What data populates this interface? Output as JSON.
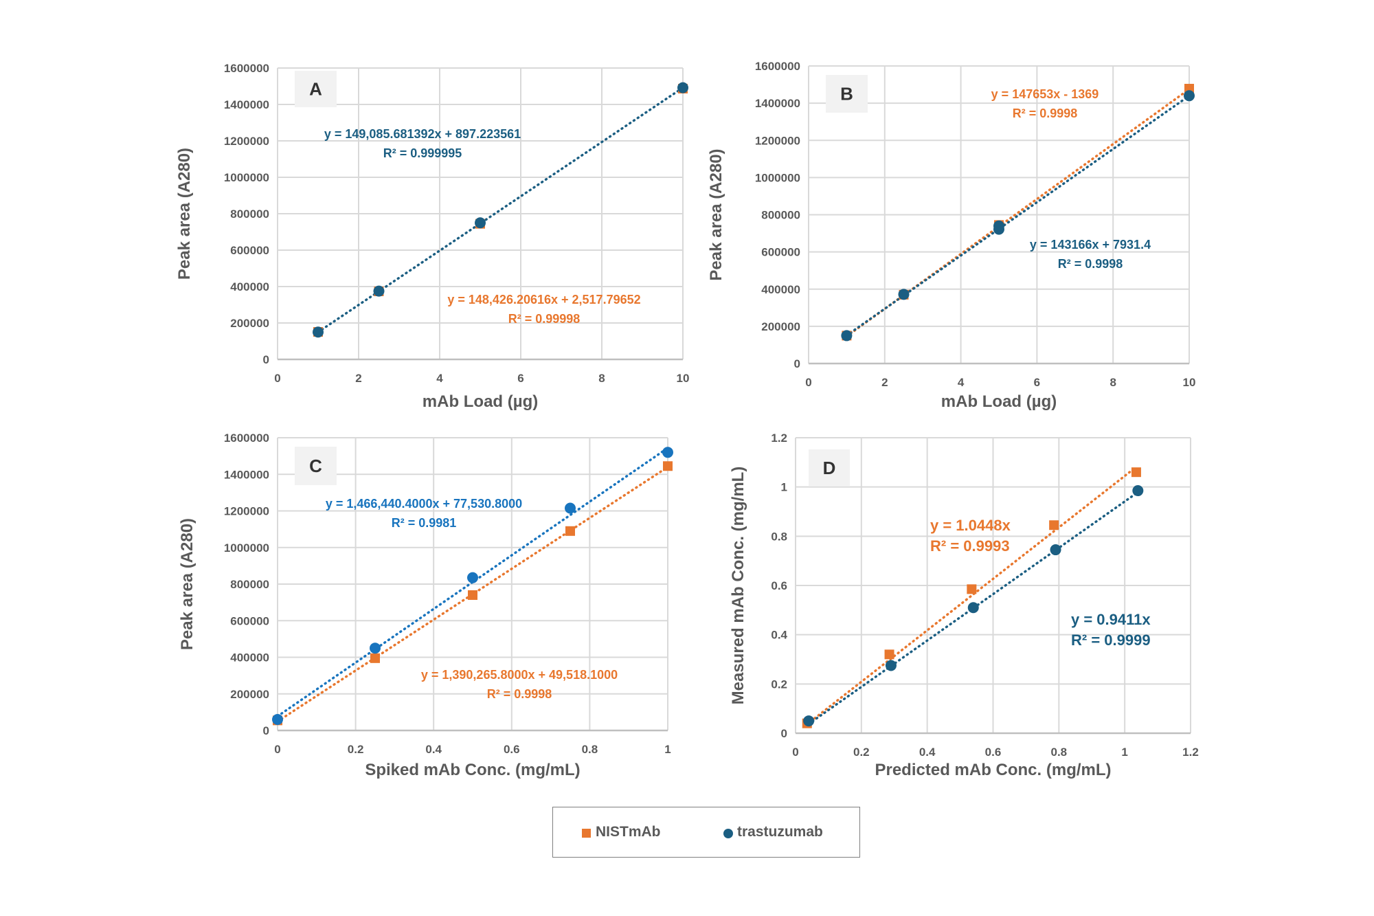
{
  "colors": {
    "nist": "#E8772E",
    "trastuzumab": "#1B5E82",
    "trastuzumab_c": "#1874BE",
    "grid": "#D9D9D9",
    "text": "#595959"
  },
  "legend": {
    "items": [
      {
        "label": "NISTmAb",
        "marker": "square",
        "color": "#E8772E"
      },
      {
        "label": "trastuzumab",
        "marker": "circle",
        "color": "#1B5E82"
      }
    ]
  },
  "chart_data": [
    {
      "panel": "A",
      "type": "scatter",
      "xlabel": "mAb Load (µg)",
      "ylabel": "Peak area (A280)",
      "xlim": [
        0,
        10
      ],
      "ylim": [
        0,
        1600000
      ],
      "xticks": [
        0,
        2,
        4,
        6,
        8,
        10
      ],
      "yticks": [
        0,
        200000,
        400000,
        600000,
        800000,
        1000000,
        1200000,
        1400000,
        1600000
      ],
      "grid": true,
      "series": [
        {
          "name": "NISTmAb",
          "marker": "square",
          "x": [
            1,
            2.5,
            5,
            10
          ],
          "y": [
            151000,
            373600,
            744600,
            1486800
          ],
          "trend": {
            "slope": 148426.20616,
            "intercept": 2517.79652,
            "shown": false
          },
          "equation": "y = 148,426.20616x + 2,517.79652",
          "r2": "R² = 0.99998"
        },
        {
          "name": "trastuzumab",
          "marker": "circle",
          "x": [
            1,
            2.5,
            5,
            10
          ],
          "y": [
            150000,
            375000,
            750000,
            1492000
          ],
          "trend": {
            "slope": 149085.681392,
            "intercept": 897.223561,
            "shown": true
          },
          "equation": "y = 149,085.681392x + 897.223561",
          "r2": "R² = 0.999995"
        }
      ]
    },
    {
      "panel": "B",
      "type": "scatter",
      "xlabel": "mAb Load (µg)",
      "ylabel": "Peak area (A280)",
      "xlim": [
        0,
        10
      ],
      "ylim": [
        0,
        1600000
      ],
      "xticks": [
        0,
        2,
        4,
        6,
        8,
        10
      ],
      "yticks": [
        0,
        200000,
        400000,
        600000,
        800000,
        1000000,
        1200000,
        1400000,
        1600000
      ],
      "grid": true,
      "series": [
        {
          "name": "NISTmAb",
          "marker": "square",
          "x": [
            1,
            2.5,
            5,
            10
          ],
          "y": [
            150000,
            370000,
            745000,
            1478000
          ],
          "trend": {
            "slope": 147653,
            "intercept": -1369,
            "shown": true
          },
          "equation": "y = 147653x - 1369",
          "r2": "R² = 0.9998"
        },
        {
          "name": "trastuzumab",
          "marker": "circle",
          "x": [
            1,
            2.5,
            5,
            5,
            10
          ],
          "y": [
            150000,
            372000,
            740000,
            722000,
            1440000
          ],
          "trend": {
            "slope": 143166,
            "intercept": 7931.4,
            "shown": true
          },
          "equation": "y = 143166x + 7931.4",
          "r2": "R² = 0.9998"
        }
      ]
    },
    {
      "panel": "C",
      "type": "scatter",
      "xlabel": "Spiked mAb Conc. (mg/mL)",
      "ylabel": "Peak area (A280)",
      "xlim": [
        0,
        1
      ],
      "ylim": [
        0,
        1600000
      ],
      "xticks": [
        0,
        0.2,
        0.4,
        0.6,
        0.8,
        1
      ],
      "yticks": [
        0,
        200000,
        400000,
        600000,
        800000,
        1000000,
        1200000,
        1400000,
        1600000
      ],
      "grid": true,
      "series": [
        {
          "name": "NISTmAb",
          "marker": "square",
          "x": [
            0,
            0.25,
            0.5,
            0.75,
            1
          ],
          "y": [
            55000,
            395000,
            740000,
            1090000,
            1445000
          ],
          "trend": {
            "slope": 1390265.8,
            "intercept": 49518.1,
            "shown": true
          },
          "equation": "y = 1,390,265.8000x + 49,518.1000",
          "r2": "R² = 0.9998"
        },
        {
          "name": "trastuzumab",
          "marker": "circle",
          "x": [
            0,
            0.25,
            0.5,
            0.75,
            1
          ],
          "y": [
            60000,
            450000,
            835000,
            1215000,
            1520000
          ],
          "trend": {
            "slope": 1466440.4,
            "intercept": 77530.8,
            "shown": true
          },
          "equation": "y = 1,466,440.4000x + 77,530.8000",
          "r2": "R² = 0.9981"
        }
      ]
    },
    {
      "panel": "D",
      "type": "scatter",
      "xlabel": "Predicted mAb Conc. (mg/mL)",
      "ylabel": "Measured  mAb Conc. (mg/mL)",
      "xlim": [
        0,
        1.2
      ],
      "ylim": [
        0,
        1.2
      ],
      "xticks": [
        0,
        0.2,
        0.4,
        0.6,
        0.8,
        1,
        1.2
      ],
      "yticks": [
        0,
        0.2,
        0.4,
        0.6,
        0.8,
        1,
        1.2
      ],
      "grid": true,
      "series": [
        {
          "name": "NISTmAb",
          "marker": "square",
          "x": [
            0.035,
            0.285,
            0.535,
            0.785,
            1.035
          ],
          "y": [
            0.04,
            0.32,
            0.585,
            0.845,
            1.06
          ],
          "trend": {
            "slope": 1.0448,
            "intercept": 0,
            "shown": true
          },
          "equation": "y = 1.0448x",
          "r2": "R² = 0.9993"
        },
        {
          "name": "trastuzumab",
          "marker": "circle",
          "x": [
            0.04,
            0.29,
            0.54,
            0.79,
            1.04
          ],
          "y": [
            0.05,
            0.275,
            0.51,
            0.745,
            0.985
          ],
          "trend": {
            "slope": 0.9411,
            "intercept": 0,
            "shown": true
          },
          "equation": "y = 0.9411x",
          "r2": "R² = 0.9999"
        }
      ]
    }
  ]
}
